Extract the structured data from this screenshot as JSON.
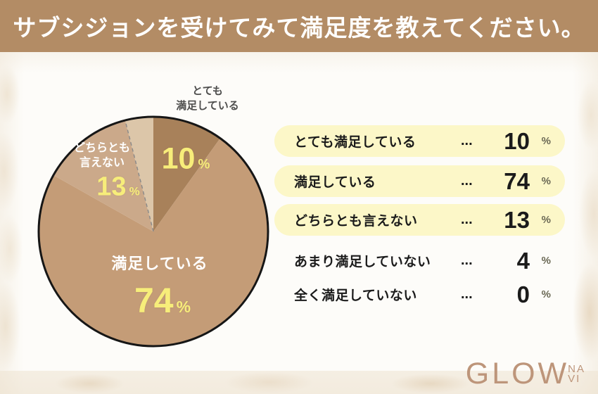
{
  "title": "サブシジョンを受けてみて満足度を教えてください。",
  "chart_data": {
    "type": "pie",
    "title": "サブシジョンを受けてみて満足度を教えてください。",
    "categories": [
      "とても満足している",
      "満足している",
      "どちらとも言えない",
      "あまり満足していない",
      "全く満足していない"
    ],
    "values": [
      10,
      74,
      13,
      4,
      0
    ],
    "unit": "%",
    "slice_colors": [
      "#a8815a",
      "#c49c77",
      "#cba98a",
      "#dcc6a9",
      null
    ],
    "start_angle": "12-o-clock-clockwise",
    "legend_position": "right",
    "value_label_color": "#f7ed7a",
    "outline_color": "#161616",
    "dashed_boundary_after_index": 2,
    "dashed_boundary_color": "#8a8a8a"
  },
  "pie": {
    "callout_lines": [
      "とても",
      "満足している"
    ],
    "neither_label_lines": [
      "どちらとも",
      "言えない"
    ]
  },
  "ui": {
    "dots": "...",
    "percent": "%"
  },
  "logo": {
    "name": "GLOWNAVI",
    "main": "GLOW",
    "stack_top": "NA",
    "stack_bottom": "VI"
  }
}
